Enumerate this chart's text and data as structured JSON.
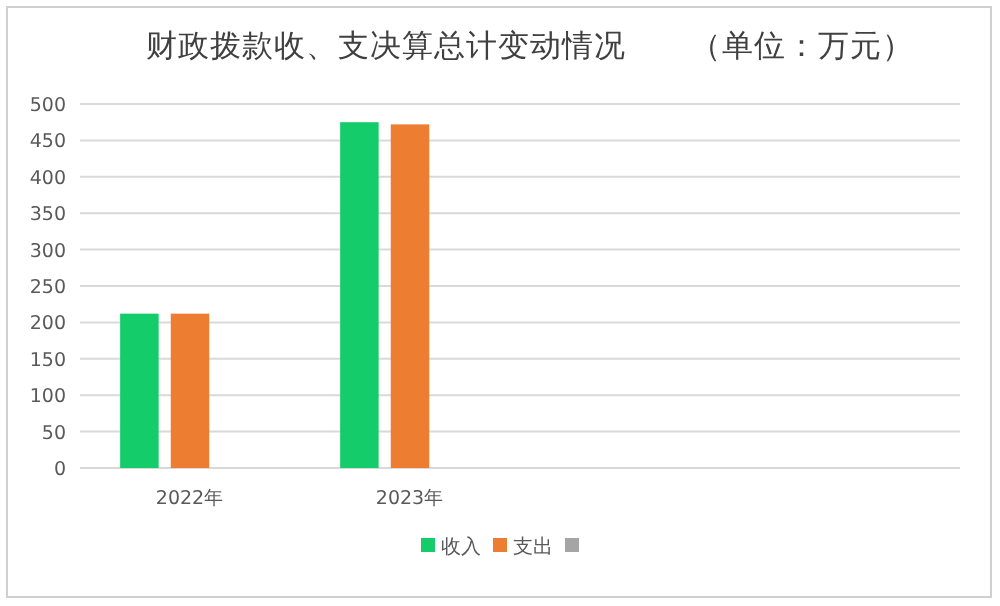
{
  "chart_data": {
    "type": "bar",
    "title": "财政拨款收、支决算总计变动情况　　（单位：万元）",
    "categories": [
      "2022年",
      "2023年",
      null,
      null
    ],
    "series": [
      {
        "name": "收入",
        "color": "#14cc6a",
        "values": [
          212,
          475,
          null,
          null
        ]
      },
      {
        "name": "支出",
        "color": "#ed7d31",
        "values": [
          212,
          472,
          null,
          null
        ]
      },
      {
        "color": "#a5a5a5",
        "values": [
          null,
          null,
          null,
          null
        ]
      }
    ],
    "ylim": [
      0,
      500
    ],
    "yticks": [
      0,
      50,
      100,
      150,
      200,
      250,
      300,
      350,
      400,
      450,
      500
    ],
    "grid": "y",
    "legend": "bottom"
  }
}
